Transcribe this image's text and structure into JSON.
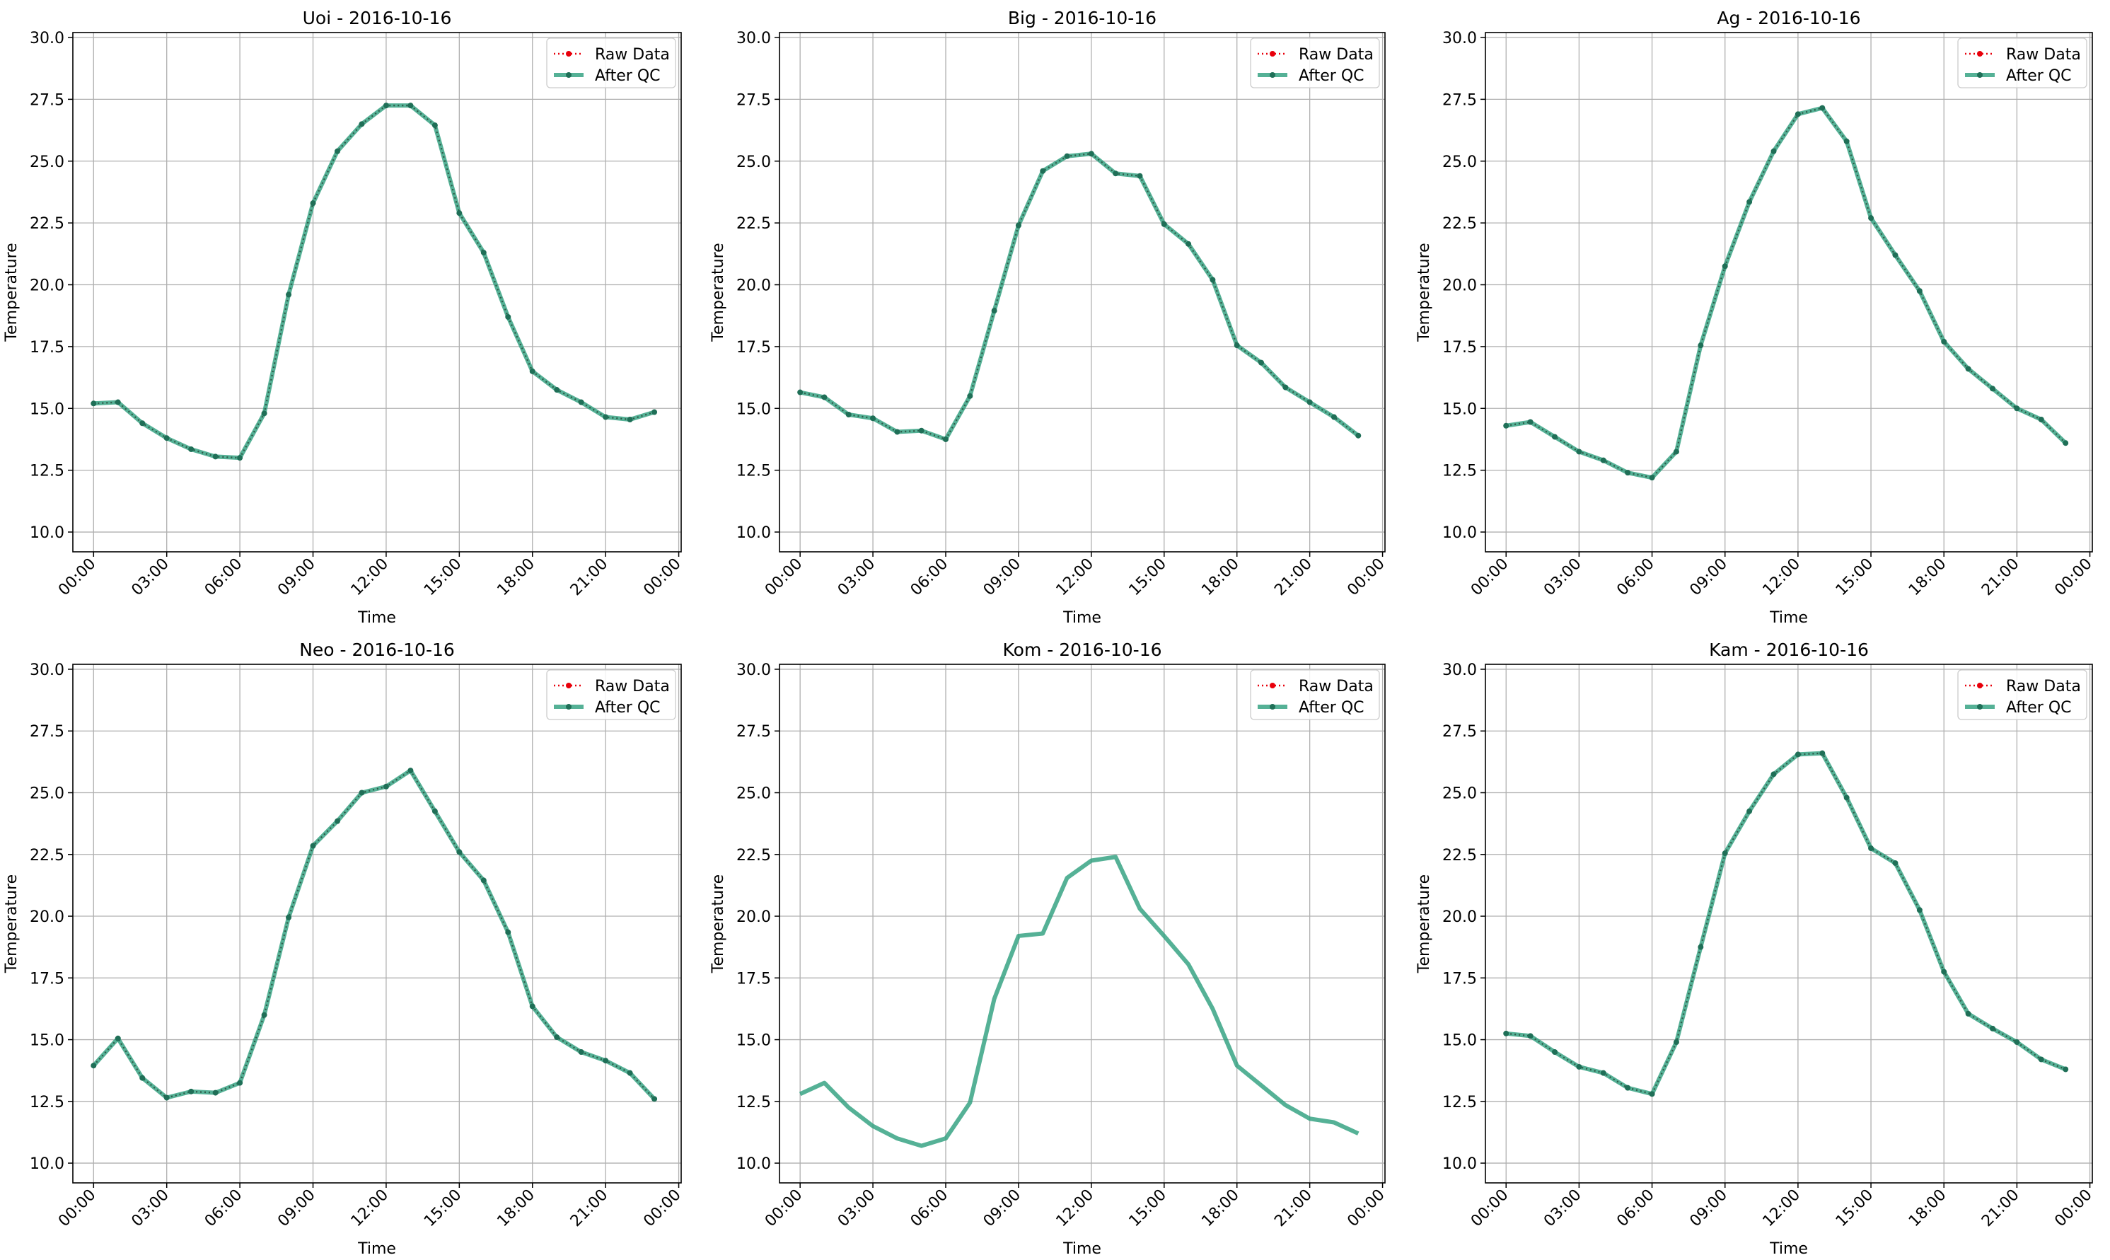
{
  "figure": {
    "legend_labels": {
      "raw": "Raw Data",
      "qc": "After QC"
    },
    "xlabel": "Time",
    "ylabel": "Temperature",
    "xticks": [
      "00:00",
      "03:00",
      "06:00",
      "09:00",
      "12:00",
      "15:00",
      "18:00",
      "21:00",
      "00:00"
    ],
    "yticks": [
      "10.0",
      "12.5",
      "15.0",
      "17.5",
      "20.0",
      "22.5",
      "25.0",
      "27.5",
      "30.0"
    ],
    "colors": {
      "raw": "#e8000b",
      "qc": "#2a9d7c",
      "qc_marker": "#1f6f57",
      "grid": "#b0b0b0"
    }
  },
  "chart_data": [
    {
      "type": "line",
      "title": "Uoi - 2016-10-16",
      "xlabel": "Time",
      "ylabel": "Temperature",
      "x_hours": [
        0,
        1,
        2,
        3,
        4,
        5,
        6,
        7,
        8,
        9,
        10,
        11,
        12,
        13,
        14,
        15,
        16,
        17,
        18,
        19,
        20,
        21,
        22,
        23
      ],
      "ylim": [
        9.2,
        30.2
      ],
      "xlim": [
        -0.85,
        24.1
      ],
      "grid": true,
      "legend": "top-right",
      "raw_visible": true,
      "series": [
        {
          "name": "Raw Data",
          "values": [
            15.2,
            15.25,
            14.4,
            13.8,
            13.35,
            13.05,
            13.0,
            14.8,
            19.6,
            23.3,
            25.4,
            26.5,
            27.25,
            27.25,
            26.45,
            22.9,
            21.3,
            18.7,
            16.5,
            15.75,
            15.25,
            14.65,
            14.55,
            14.85
          ]
        },
        {
          "name": "After QC",
          "values": [
            15.2,
            15.25,
            14.4,
            13.8,
            13.35,
            13.05,
            13.0,
            14.8,
            19.6,
            23.3,
            25.4,
            26.5,
            27.25,
            27.25,
            26.45,
            22.9,
            21.3,
            18.7,
            16.5,
            15.75,
            15.25,
            14.65,
            14.55,
            14.85
          ]
        }
      ]
    },
    {
      "type": "line",
      "title": "Big - 2016-10-16",
      "xlabel": "Time",
      "ylabel": "Temperature",
      "x_hours": [
        0,
        1,
        2,
        3,
        4,
        5,
        6,
        7,
        8,
        9,
        10,
        11,
        12,
        13,
        14,
        15,
        16,
        17,
        18,
        19,
        20,
        21,
        22,
        23
      ],
      "ylim": [
        9.2,
        30.2
      ],
      "xlim": [
        -0.85,
        24.1
      ],
      "grid": true,
      "legend": "top-right",
      "raw_visible": true,
      "series": [
        {
          "name": "Raw Data",
          "values": [
            15.65,
            15.45,
            14.75,
            14.6,
            14.05,
            14.1,
            13.75,
            15.5,
            18.95,
            22.4,
            24.6,
            25.2,
            25.3,
            24.5,
            24.4,
            22.45,
            21.65,
            20.2,
            17.55,
            16.85,
            15.85,
            15.25,
            14.65,
            13.9
          ]
        },
        {
          "name": "After QC",
          "values": [
            15.65,
            15.45,
            14.75,
            14.6,
            14.05,
            14.1,
            13.75,
            15.5,
            18.95,
            22.4,
            24.6,
            25.2,
            25.3,
            24.5,
            24.4,
            22.45,
            21.65,
            20.2,
            17.55,
            16.85,
            15.85,
            15.25,
            14.65,
            13.9
          ]
        }
      ]
    },
    {
      "type": "line",
      "title": "Ag - 2016-10-16",
      "xlabel": "Time",
      "ylabel": "Temperature",
      "x_hours": [
        0,
        1,
        2,
        3,
        4,
        5,
        6,
        7,
        8,
        9,
        10,
        11,
        12,
        13,
        14,
        15,
        16,
        17,
        18,
        19,
        20,
        21,
        22,
        23
      ],
      "ylim": [
        9.2,
        30.2
      ],
      "xlim": [
        -0.85,
        24.1
      ],
      "grid": true,
      "legend": "top-right",
      "raw_visible": true,
      "series": [
        {
          "name": "Raw Data",
          "values": [
            14.3,
            14.45,
            13.85,
            13.25,
            12.9,
            12.4,
            12.2,
            13.25,
            17.55,
            20.75,
            23.35,
            25.4,
            26.9,
            27.15,
            25.8,
            22.7,
            21.2,
            19.75,
            17.7,
            16.6,
            15.8,
            15.0,
            14.55,
            13.6
          ]
        },
        {
          "name": "After QC",
          "values": [
            14.3,
            14.45,
            13.85,
            13.25,
            12.9,
            12.4,
            12.2,
            13.25,
            17.55,
            20.75,
            23.35,
            25.4,
            26.9,
            27.15,
            25.8,
            22.7,
            21.2,
            19.75,
            17.7,
            16.6,
            15.8,
            15.0,
            14.55,
            13.6
          ]
        }
      ]
    },
    {
      "type": "line",
      "title": "Neo - 2016-10-16",
      "xlabel": "Time",
      "ylabel": "Temperature",
      "x_hours": [
        0,
        1,
        2,
        3,
        4,
        5,
        6,
        7,
        8,
        9,
        10,
        11,
        12,
        13,
        14,
        15,
        16,
        17,
        18,
        19,
        20,
        21,
        22,
        23
      ],
      "ylim": [
        9.2,
        30.2
      ],
      "xlim": [
        -0.85,
        24.1
      ],
      "grid": true,
      "legend": "top-right",
      "raw_visible": true,
      "series": [
        {
          "name": "Raw Data",
          "values": [
            13.95,
            15.05,
            13.45,
            12.65,
            12.9,
            12.85,
            13.25,
            16.0,
            19.95,
            22.85,
            23.85,
            25.0,
            25.25,
            25.9,
            24.25,
            22.6,
            21.45,
            19.35,
            16.35,
            15.1,
            14.5,
            14.15,
            13.65,
            12.6
          ]
        },
        {
          "name": "After QC",
          "values": [
            13.95,
            15.05,
            13.45,
            12.65,
            12.9,
            12.85,
            13.25,
            16.0,
            19.95,
            22.85,
            23.85,
            25.0,
            25.25,
            25.9,
            24.25,
            22.6,
            21.45,
            19.35,
            16.35,
            15.1,
            14.5,
            14.15,
            13.65,
            12.6
          ]
        }
      ]
    },
    {
      "type": "line",
      "title": "Kom - 2016-10-16",
      "xlabel": "Time",
      "ylabel": "Temperature",
      "x_hours": [
        0,
        1,
        2,
        3,
        4,
        5,
        6,
        7,
        8,
        9,
        10,
        11,
        12,
        13,
        14,
        15,
        16,
        17,
        18,
        19,
        20,
        21,
        22,
        23
      ],
      "ylim": [
        9.2,
        30.2
      ],
      "xlim": [
        -0.85,
        24.1
      ],
      "grid": true,
      "legend": "top-right",
      "raw_visible": false,
      "series": [
        {
          "name": "Raw Data",
          "values": [
            12.8,
            13.25,
            12.25,
            11.5,
            11.0,
            10.7,
            11.0,
            12.45,
            16.65,
            19.2,
            19.3,
            21.55,
            22.25,
            22.4,
            20.3,
            19.2,
            18.05,
            16.25,
            13.95,
            13.15,
            12.35,
            11.8,
            11.65,
            11.2
          ]
        },
        {
          "name": "After QC",
          "values": [
            12.8,
            13.25,
            12.25,
            11.5,
            11.0,
            10.7,
            11.0,
            12.45,
            16.65,
            19.2,
            19.3,
            21.55,
            22.25,
            22.4,
            20.3,
            19.2,
            18.05,
            16.25,
            13.95,
            13.15,
            12.35,
            11.8,
            11.65,
            11.2
          ]
        }
      ]
    },
    {
      "type": "line",
      "title": "Kam - 2016-10-16",
      "xlabel": "Time",
      "ylabel": "Temperature",
      "x_hours": [
        0,
        1,
        2,
        3,
        4,
        5,
        6,
        7,
        8,
        9,
        10,
        11,
        12,
        13,
        14,
        15,
        16,
        17,
        18,
        19,
        20,
        21,
        22,
        23
      ],
      "ylim": [
        9.2,
        30.2
      ],
      "xlim": [
        -0.85,
        24.1
      ],
      "grid": true,
      "legend": "top-right",
      "raw_visible": true,
      "series": [
        {
          "name": "Raw Data",
          "values": [
            15.25,
            15.15,
            14.5,
            13.9,
            13.65,
            13.05,
            12.8,
            14.9,
            18.75,
            22.55,
            24.25,
            25.75,
            26.55,
            26.6,
            24.8,
            22.75,
            22.15,
            20.25,
            17.75,
            16.05,
            15.45,
            14.9,
            14.2,
            13.8
          ]
        },
        {
          "name": "After QC",
          "values": [
            15.25,
            15.15,
            14.5,
            13.9,
            13.65,
            13.05,
            12.8,
            14.9,
            18.75,
            22.55,
            24.25,
            25.75,
            26.55,
            26.6,
            24.8,
            22.75,
            22.15,
            20.25,
            17.75,
            16.05,
            15.45,
            14.9,
            14.2,
            13.8
          ]
        }
      ]
    }
  ]
}
